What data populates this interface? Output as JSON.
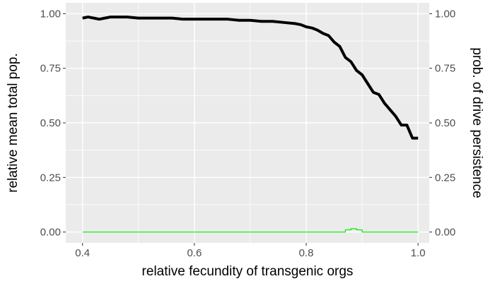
{
  "chart_data": {
    "type": "line",
    "xlabel": "relative fecundity of transgenic orgs",
    "ylabel_left": "relative mean total pop.",
    "ylabel_right": "prob. of drive persistence",
    "xlim": [
      0.37,
      1.02
    ],
    "ylim": [
      -0.05,
      1.05
    ],
    "x_ticks": [
      0.4,
      0.6,
      0.8,
      1.0
    ],
    "x_tick_labels": [
      "0.4",
      "0.6",
      "0.8",
      "1.0"
    ],
    "y_ticks": [
      0,
      0.25,
      0.5,
      0.75,
      1.0
    ],
    "y_tick_labels_left": [
      "0.00",
      "0.25",
      "0.50",
      "0.75",
      "1.00"
    ],
    "y_tick_labels_right": [
      "0.00",
      "0.25",
      "0.50",
      "0.75",
      "1.00"
    ],
    "grid": true,
    "colors": {
      "panel_background": "#ebebeb",
      "grid": "#ffffff",
      "population_line": "#000000",
      "persistence_step": "#00ee00"
    },
    "series": [
      {
        "style": "line",
        "x": [
          0.4,
          0.41,
          0.42,
          0.43,
          0.44,
          0.45,
          0.46,
          0.48,
          0.5,
          0.52,
          0.54,
          0.56,
          0.58,
          0.6,
          0.62,
          0.64,
          0.66,
          0.68,
          0.7,
          0.72,
          0.74,
          0.76,
          0.78,
          0.79,
          0.8,
          0.81,
          0.82,
          0.83,
          0.84,
          0.85,
          0.86,
          0.87,
          0.88,
          0.89,
          0.9,
          0.91,
          0.92,
          0.93,
          0.94,
          0.95,
          0.96,
          0.97,
          0.98,
          0.99,
          1.0
        ],
        "y": [
          0.98,
          0.985,
          0.98,
          0.975,
          0.98,
          0.985,
          0.985,
          0.985,
          0.98,
          0.98,
          0.98,
          0.98,
          0.975,
          0.975,
          0.975,
          0.975,
          0.975,
          0.97,
          0.97,
          0.965,
          0.965,
          0.96,
          0.955,
          0.95,
          0.94,
          0.935,
          0.925,
          0.91,
          0.9,
          0.87,
          0.85,
          0.8,
          0.78,
          0.74,
          0.72,
          0.68,
          0.64,
          0.63,
          0.59,
          0.56,
          0.53,
          0.49,
          0.49,
          0.43,
          0.43
        ]
      },
      {
        "style": "step",
        "x": [
          0.4,
          0.41,
          0.42,
          0.43,
          0.44,
          0.45,
          0.46,
          0.47,
          0.48,
          0.49,
          0.5,
          0.51,
          0.52,
          0.53,
          0.54,
          0.55,
          0.56,
          0.57,
          0.58,
          0.59,
          0.6,
          0.61,
          0.62,
          0.63,
          0.64,
          0.65,
          0.66,
          0.67,
          0.68,
          0.69,
          0.7,
          0.71,
          0.72,
          0.73,
          0.74,
          0.75,
          0.76,
          0.77,
          0.78,
          0.79,
          0.8,
          0.81,
          0.82,
          0.83,
          0.84,
          0.85,
          0.86,
          0.87,
          0.88,
          0.89,
          0.9,
          0.91,
          0.92,
          0.93,
          0.94,
          0.95,
          0.96,
          0.97,
          0.98,
          0.99,
          1.0
        ],
        "y": [
          0,
          0,
          0,
          0,
          0,
          0,
          0,
          0,
          0,
          0,
          0,
          0,
          0,
          0,
          0,
          0,
          0,
          0,
          0,
          0,
          0,
          0,
          0,
          0,
          0,
          0,
          0,
          0,
          0,
          0,
          0,
          0,
          0,
          0,
          0,
          0,
          0,
          0,
          0,
          0,
          0,
          0,
          0,
          0,
          0,
          0,
          0,
          0.01,
          0.015,
          0.01,
          0,
          0,
          0,
          0,
          0,
          0,
          0,
          0,
          0,
          0,
          0
        ]
      }
    ]
  }
}
